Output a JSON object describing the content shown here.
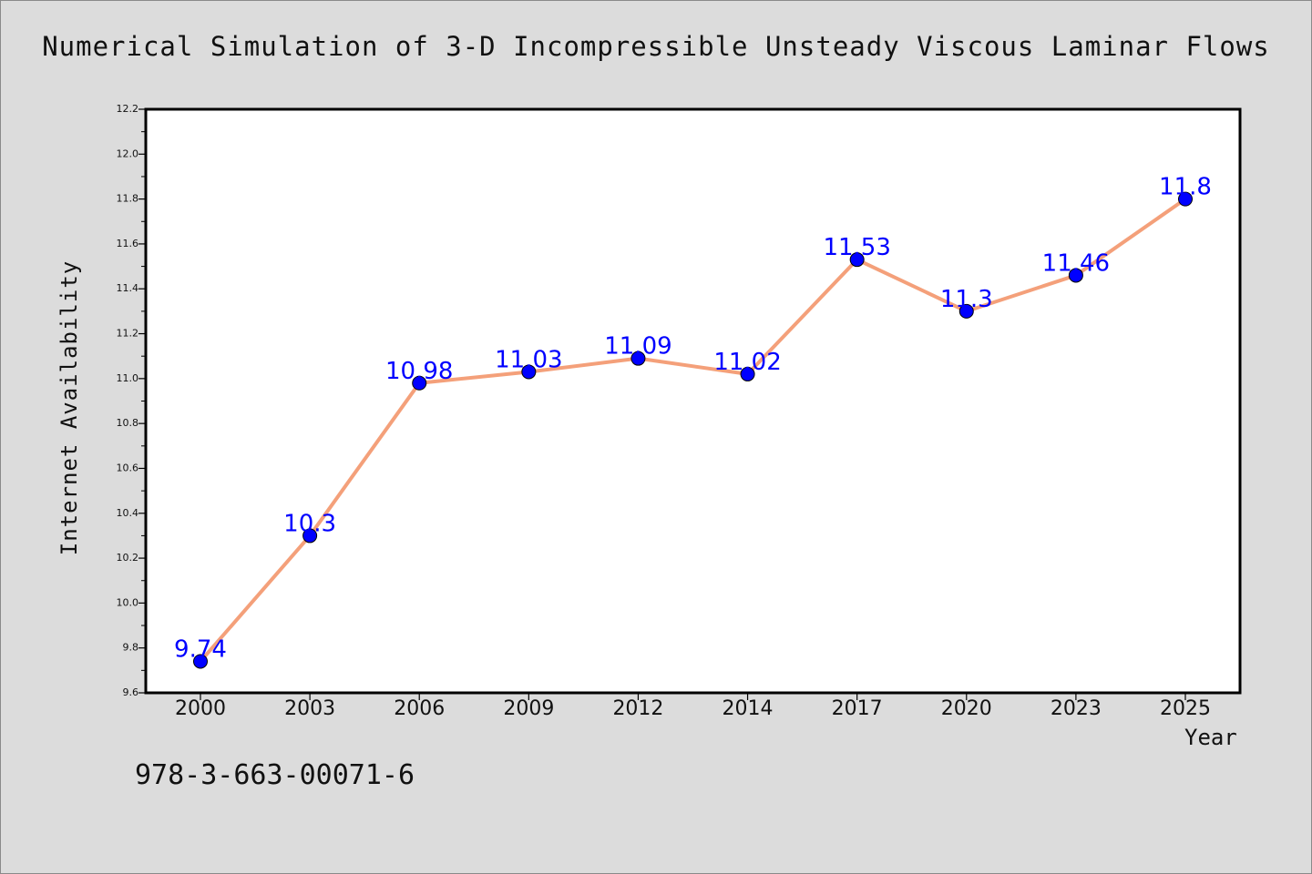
{
  "chart_data": {
    "type": "line",
    "title": "Numerical Simulation of 3-D Incompressible Unsteady Viscous Laminar Flows",
    "xlabel": "Year",
    "ylabel": "Internet Availability",
    "categories": [
      "2000",
      "2003",
      "2006",
      "2009",
      "2012",
      "2014",
      "2017",
      "2020",
      "2023",
      "2025"
    ],
    "values": [
      9.74,
      10.3,
      10.98,
      11.03,
      11.09,
      11.02,
      11.53,
      11.3,
      11.46,
      11.8
    ],
    "data_labels": [
      "9.74",
      "10.3",
      "10.98",
      "11.03",
      "11.09",
      "11.02",
      "11.53",
      "11.3",
      "11.46",
      "11.8"
    ],
    "ylim": [
      9.6,
      12.2
    ],
    "y_ticks": [
      "9.6",
      "9.8",
      "10.0",
      "10.2",
      "10.4",
      "10.6",
      "10.8",
      "11.0",
      "11.2",
      "11.4",
      "11.6",
      "11.8",
      "12.0",
      "12.2"
    ],
    "grid": false,
    "line_color": "#f4a07a",
    "marker_color": "#0000ff",
    "label_color": "#0000ff"
  },
  "footer": {
    "isbn": "978-3-663-00071-6"
  }
}
